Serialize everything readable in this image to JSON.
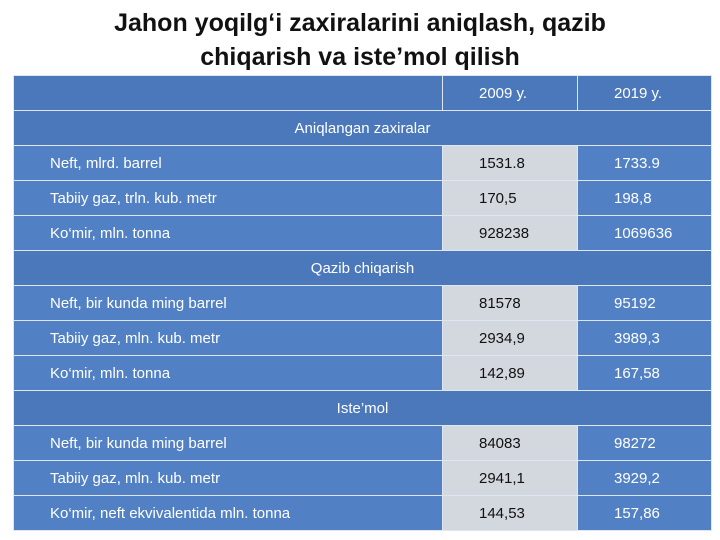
{
  "title": "Jahon yoqilg‘i zaxiralarini aniqlash, qazib chiqarish va iste’mol qilish",
  "table": {
    "header": [
      "2009 y.",
      "2019 y."
    ],
    "sections": [
      {
        "title": "Aniqlangan zaxiralar",
        "rows": [
          [
            "Neft, mlrd. barrel",
            "1531.8",
            "1733.9"
          ],
          [
            "Tabiiy gaz, trln. kub. metr",
            "170,5",
            "198,8"
          ],
          [
            "Ko‘mir, mln. tonna",
            "928238",
            "1069636"
          ]
        ]
      },
      {
        "title": "Qazib chiqarish",
        "rows": [
          [
            "Neft, bir kunda ming barrel",
            "81578",
            "95192"
          ],
          [
            "Tabiiy gaz, mln. kub. metr",
            "2934,9",
            "3989,3"
          ],
          [
            "Ko‘mir, mln. tonna",
            "142,89",
            "167,58"
          ]
        ]
      },
      {
        "title": "Iste’mol",
        "rows": [
          [
            "Neft, bir kunda ming barrel",
            "84083",
            "98272"
          ],
          [
            "Tabiiy gaz, mln. kub. metr",
            "2941,1",
            "3929,2"
          ],
          [
            "Ko‘mir, neft ekvivalentida mln. tonna",
            "144,53",
            "157,86"
          ]
        ]
      }
    ]
  }
}
